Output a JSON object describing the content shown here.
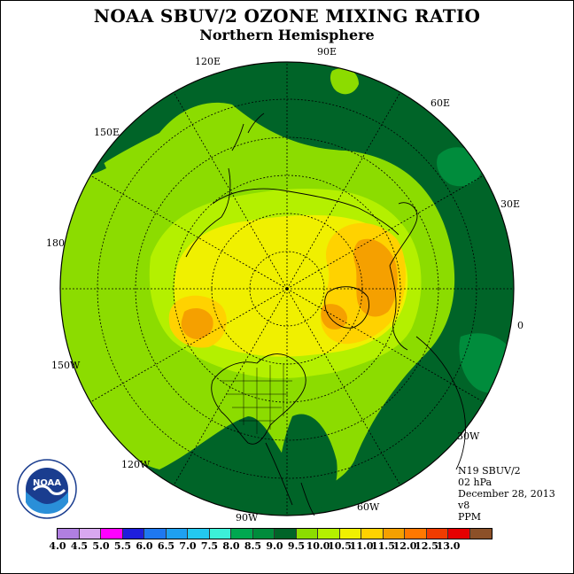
{
  "title": "NOAA SBUV/2 OZONE MIXING RATIO",
  "subtitle": "Northern Hemisphere",
  "longitude_labels": [
    {
      "id": "90E",
      "text": "90E"
    },
    {
      "id": "60E",
      "text": "60E"
    },
    {
      "id": "30E",
      "text": "30E"
    },
    {
      "id": "0",
      "text": "0"
    },
    {
      "id": "30W",
      "text": "30W"
    },
    {
      "id": "60W",
      "text": "60W"
    },
    {
      "id": "90W",
      "text": "90W"
    },
    {
      "id": "120W",
      "text": "120W"
    },
    {
      "id": "150W",
      "text": "150W"
    },
    {
      "id": "180",
      "text": "180"
    },
    {
      "id": "150E",
      "text": "150E"
    },
    {
      "id": "120E",
      "text": "120E"
    }
  ],
  "info": {
    "satellite": "N19 SBUV/2",
    "level": "02 hPa",
    "date": "December 28, 2013",
    "version": "v8",
    "units": "PPM"
  },
  "legend": {
    "colors": [
      "#b07fe0",
      "#d8a8f0",
      "#ff00ff",
      "#1e1edc",
      "#1e78f0",
      "#1ea0f0",
      "#23c8f0",
      "#3cf0d8",
      "#00a850",
      "#008c3c",
      "#006428",
      "#8cdc00",
      "#b4f000",
      "#f0f000",
      "#ffd200",
      "#f5a000",
      "#ff7800",
      "#f03c00",
      "#e60000",
      "#8c5028"
    ],
    "ticks": [
      "4.0",
      "4.5",
      "5.0",
      "5.5",
      "6.0",
      "6.5",
      "7.0",
      "7.5",
      "8.0",
      "8.5",
      "9.0",
      "9.5",
      "10.0",
      "10.5",
      "11.0",
      "11.5",
      "12.0",
      "12.5",
      "13.0"
    ]
  },
  "logo": {
    "text": "NOAA"
  }
}
